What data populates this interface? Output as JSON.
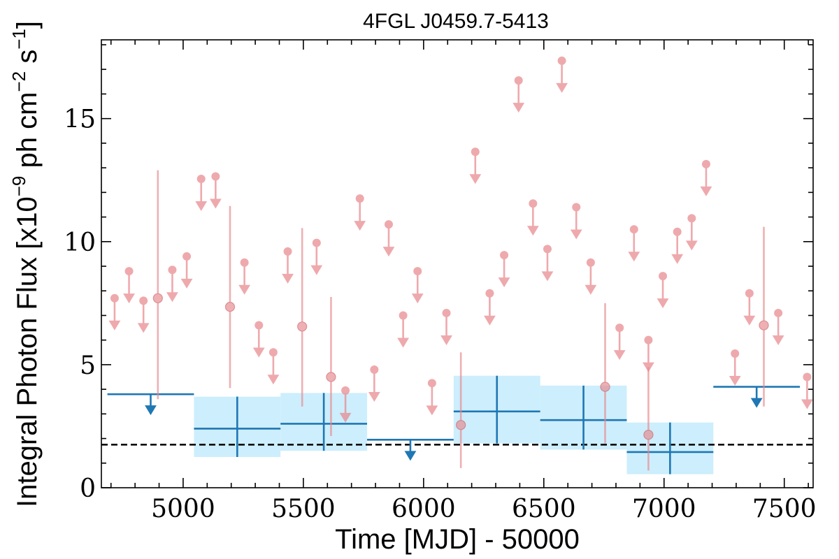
{
  "chart_data": {
    "type": "scatter",
    "title": "4FGL J0459.7-5413",
    "xlabel": "Time [MJD] - 50000",
    "ylabel": "Integral Photon Flux [x10^-9 ph cm^-2 s^-1]",
    "ylabel_parts": {
      "pre": "Integral Photon Flux [x10",
      "exp1": "−9",
      "mid": " ph cm",
      "exp2": "−2",
      "mid2": " s",
      "exp3": "−1",
      "post": "]"
    },
    "xlim": [
      4660,
      7620
    ],
    "ylim": [
      0,
      18.2
    ],
    "x_ticks": [
      5000,
      5500,
      6000,
      6500,
      7000,
      7500
    ],
    "y_ticks": [
      0,
      5,
      10,
      15
    ],
    "grid": false,
    "reference_line": {
      "y": 1.75,
      "style": "dashed",
      "color": "#000000"
    },
    "colors": {
      "short_bins": "#e8868b",
      "long_bins": "#1f77b4",
      "long_bins_fill": "#cdeefc",
      "axis": "#000000"
    },
    "short_bin_upper_limits": [
      [
        4715,
        7.7
      ],
      [
        4775,
        8.8
      ],
      [
        4835,
        7.6
      ],
      [
        4955,
        8.85
      ],
      [
        5015,
        9.4
      ],
      [
        5075,
        12.55
      ],
      [
        5135,
        12.65
      ],
      [
        5255,
        9.15
      ],
      [
        5315,
        6.6
      ],
      [
        5375,
        5.5
      ],
      [
        5435,
        9.6
      ],
      [
        5555,
        9.95
      ],
      [
        5675,
        3.95
      ],
      [
        5735,
        11.75
      ],
      [
        5795,
        4.8
      ],
      [
        5855,
        10.7
      ],
      [
        5915,
        7.0
      ],
      [
        5975,
        8.8
      ],
      [
        6035,
        4.25
      ],
      [
        6095,
        7.1
      ],
      [
        6215,
        13.65
      ],
      [
        6275,
        7.9
      ],
      [
        6335,
        9.45
      ],
      [
        6395,
        16.55
      ],
      [
        6455,
        11.55
      ],
      [
        6515,
        9.7
      ],
      [
        6575,
        17.35
      ],
      [
        6635,
        11.4
      ],
      [
        6695,
        9.15
      ],
      [
        6815,
        6.5
      ],
      [
        6875,
        10.5
      ],
      [
        6935,
        6.0
      ],
      [
        6995,
        8.6
      ],
      [
        7055,
        10.4
      ],
      [
        7115,
        10.95
      ],
      [
        7175,
        13.15
      ],
      [
        7295,
        5.45
      ],
      [
        7355,
        7.9
      ],
      [
        7475,
        7.1
      ],
      [
        7595,
        4.5
      ]
    ],
    "short_bin_detections": [
      {
        "x": 4895,
        "y": 7.7,
        "ylo": 3.6,
        "yhi": 12.9
      },
      {
        "x": 5195,
        "y": 7.35,
        "ylo": 4.05,
        "yhi": 11.45
      },
      {
        "x": 5495,
        "y": 6.55,
        "ylo": 3.3,
        "yhi": 10.55
      },
      {
        "x": 5615,
        "y": 4.5,
        "ylo": 2.1,
        "yhi": 7.75
      },
      {
        "x": 6155,
        "y": 2.55,
        "ylo": 0.8,
        "yhi": 5.5
      },
      {
        "x": 6755,
        "y": 4.1,
        "ylo": 1.8,
        "yhi": 7.5
      },
      {
        "x": 6935,
        "y": 2.15,
        "ylo": 0.7,
        "yhi": 4.9
      },
      {
        "x": 7415,
        "y": 6.6,
        "ylo": 3.3,
        "yhi": 10.6
      }
    ],
    "long_bin_upper_limits": [
      {
        "x0": 4685,
        "x1": 5045,
        "y": 3.8
      },
      {
        "x0": 5765,
        "x1": 6125,
        "y": 1.95
      },
      {
        "x0": 7205,
        "x1": 7565,
        "y": 4.1
      }
    ],
    "long_bin_detections": [
      {
        "x0": 5045,
        "x1": 5405,
        "y": 2.4,
        "ylo": 1.25,
        "yhi": 3.7
      },
      {
        "x0": 5405,
        "x1": 5765,
        "y": 2.6,
        "ylo": 1.5,
        "yhi": 3.85
      },
      {
        "x0": 6125,
        "x1": 6485,
        "y": 3.1,
        "ylo": 1.8,
        "yhi": 4.55
      },
      {
        "x0": 6485,
        "x1": 6845,
        "y": 2.75,
        "ylo": 1.55,
        "yhi": 4.15
      },
      {
        "x0": 6845,
        "x1": 7205,
        "y": 1.45,
        "ylo": 0.55,
        "yhi": 2.65
      }
    ]
  }
}
